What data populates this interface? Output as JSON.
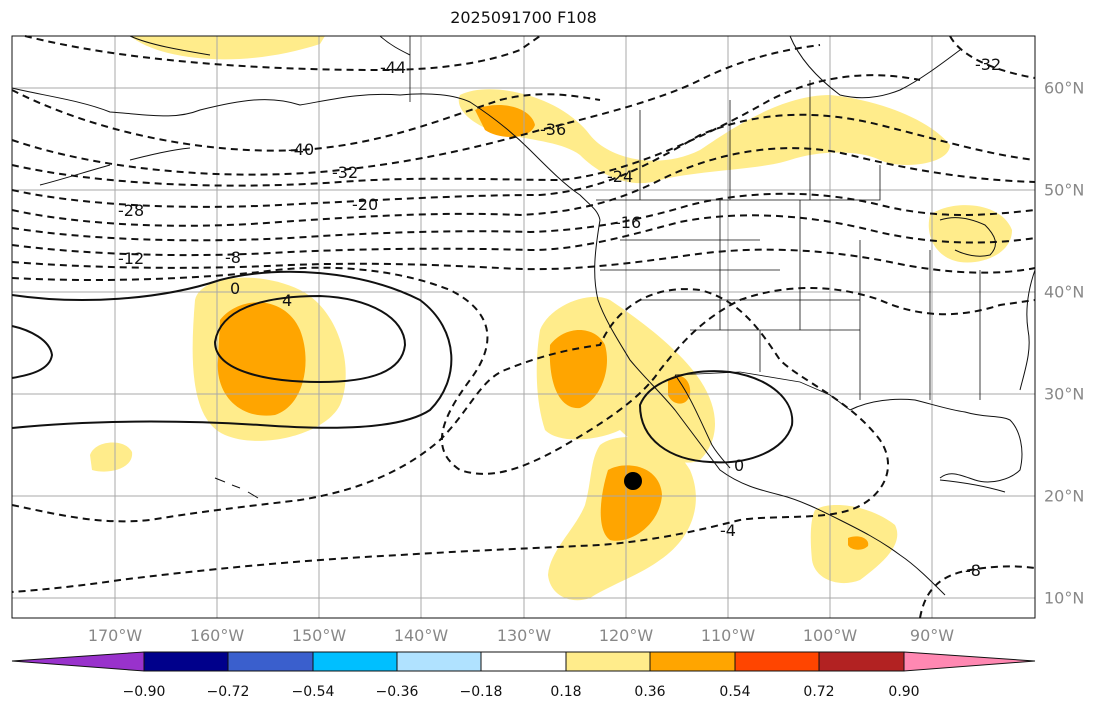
{
  "title": "2025091700 F108",
  "map": {
    "projection": "plate-carree",
    "region": "North-east Pacific and North America",
    "lon_labels": [
      "170°W",
      "160°W",
      "150°W",
      "140°W",
      "130°W",
      "120°W",
      "110°W",
      "100°W",
      "90°W"
    ],
    "lat_labels": [
      "60°N",
      "50°N",
      "40°N",
      "30°N",
      "20°N",
      "10°N"
    ],
    "marker": {
      "name": "storm-position",
      "lat": 21.5,
      "lon": -119
    }
  },
  "contour_labels": [
    "-44",
    "-40",
    "-36",
    "-32",
    "-28",
    "-24",
    "-20",
    "-16",
    "-12",
    "-8",
    "0",
    "4",
    "0",
    "-4",
    "-8",
    "-32"
  ],
  "colorbar": {
    "ticks": [
      "−0.90",
      "−0.72",
      "−0.54",
      "−0.36",
      "−0.18",
      "0.18",
      "0.36",
      "0.54",
      "0.72",
      "0.90"
    ],
    "colors": [
      "#9932cc",
      "#00008b",
      "#3a5fcd",
      "#4169e1",
      "#00bfff",
      "#b0e2ff",
      "#ffffff",
      "#ffec8b",
      "#ffa500",
      "#ff4500",
      "#b22222",
      "#ff88b2"
    ],
    "extend": "both"
  },
  "shading_colors": {
    "low": "#ffec8b",
    "mid": "#ffa500"
  }
}
